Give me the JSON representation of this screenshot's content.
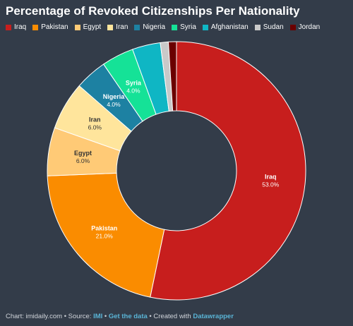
{
  "title": "Percentage of Revoked Citizenships Per Nationality",
  "footer": {
    "prefix": "Chart: imidaily.com • Source: ",
    "source_link": "IMI",
    "sep": " • ",
    "get_data_link": "Get the data",
    "created_with": " • Created with ",
    "tool_link": "Datawrapper"
  },
  "chart_data": {
    "type": "pie",
    "donut": true,
    "title": "Percentage of Revoked Citizenships Per Nationality",
    "legend_position": "top-left",
    "slices": [
      {
        "label": "Iraq",
        "value": 53.0,
        "display": "53.0%",
        "color": "#c71e1d",
        "show_label": true
      },
      {
        "label": "Pakistan",
        "value": 21.0,
        "display": "21.0%",
        "color": "#fa8c00",
        "show_label": true
      },
      {
        "label": "Egypt",
        "value": 6.0,
        "display": "6.0%",
        "color": "#ffca76",
        "show_label": true
      },
      {
        "label": "Iran",
        "value": 6.0,
        "display": "6.0%",
        "color": "#ffe59c",
        "show_label": true
      },
      {
        "label": "Nigeria",
        "value": 4.0,
        "display": "4.0%",
        "color": "#1d81a2",
        "show_label": true
      },
      {
        "label": "Syria",
        "value": 4.0,
        "display": "4.0%",
        "color": "#15e297",
        "show_label": true
      },
      {
        "label": "Afghanistan",
        "value": 3.5,
        "display": "",
        "color": "#0fb6c4",
        "show_label": false
      },
      {
        "label": "Sudan",
        "value": 1.0,
        "display": "",
        "color": "#c9c9c9",
        "show_label": false
      },
      {
        "label": "Jordan",
        "value": 1.0,
        "display": "",
        "color": "#6b0000",
        "show_label": false
      }
    ]
  }
}
